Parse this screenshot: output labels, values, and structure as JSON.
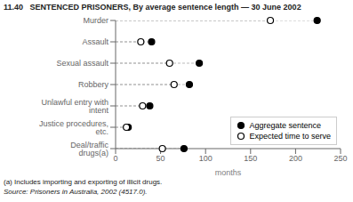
{
  "chart_data": {
    "type": "dot",
    "title": "11.40   SENTENCED PRISONERS, By average sentence length — 30 June 2002",
    "categories": [
      "Murder",
      "Assault",
      "Sexual assault",
      "Robbery",
      "Unlawful entry with intent",
      "Justice procedures, etc.",
      "Deal/traffic drugs(a)"
    ],
    "series": [
      {
        "name": "Aggregate sentence",
        "color": "#000000",
        "marker": "filled_circle",
        "values": [
          224,
          40,
          93,
          82,
          38,
          14,
          76
        ]
      },
      {
        "name": "Expected time to serve",
        "color": "#000000",
        "marker": "open_circle",
        "values": [
          172,
          28,
          60,
          65,
          30,
          12,
          52
        ]
      }
    ],
    "xlabel": "months",
    "xlim": [
      0,
      250
    ],
    "xticks": [
      0,
      50,
      100,
      150,
      200,
      250
    ],
    "legend": "lower right",
    "annotations": [
      "(a) Includes importing and exporting of illicit drugs.",
      "Source: Prisoners in Australia, 2002 (4517.0)."
    ]
  }
}
